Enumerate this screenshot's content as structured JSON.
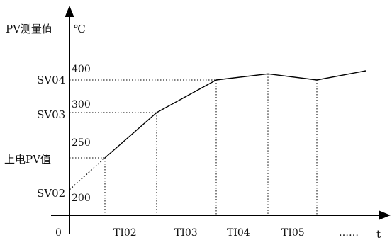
{
  "chart_data": {
    "type": "line",
    "title": "",
    "y_axis_label": "PV测量值",
    "y_axis_unit": "℃",
    "x_axis_label": "t",
    "origin_label": "0",
    "y_levels": [
      {
        "name": "SV02",
        "value": "200"
      },
      {
        "name": "上电PV值",
        "value": "250"
      },
      {
        "name": "SV03",
        "value": "300"
      },
      {
        "name": "SV04",
        "value": "400"
      }
    ],
    "x_segments": [
      "TI02",
      "TI03",
      "TI04",
      "TI05",
      "……"
    ],
    "series": [
      {
        "points": [
          {
            "t": 0,
            "pv": 200,
            "style": "dotted"
          },
          {
            "t": 1,
            "pv": 250,
            "style": "solid"
          },
          {
            "t": 2,
            "pv": 300,
            "style": "solid"
          },
          {
            "t": 3,
            "pv": 400,
            "style": "solid"
          },
          {
            "t": 4,
            "pv": 410,
            "style": "solid"
          },
          {
            "t": 5,
            "pv": 400,
            "style": "solid"
          },
          {
            "t": 6,
            "pv": 415,
            "style": "solid"
          }
        ]
      }
    ],
    "grid": false
  }
}
